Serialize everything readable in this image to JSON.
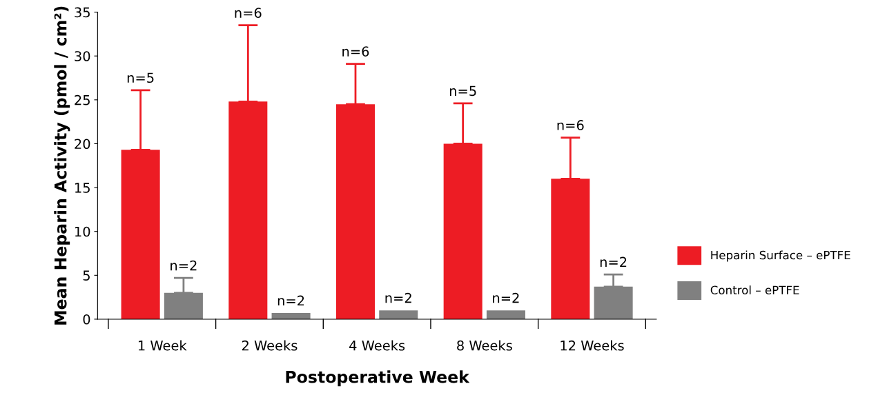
{
  "chart_data": {
    "type": "bar",
    "xlabel": "Postoperative Week",
    "ylabel": "Mean Heparin Activity (pmol / cm²)",
    "categories": [
      "1 Week",
      "2 Weeks",
      "4 Weeks",
      "8 Weeks",
      "12 Weeks"
    ],
    "series": [
      {
        "name": "Heparin Surface – ePTFE",
        "color": "#ed1c24",
        "values": [
          19.3,
          24.8,
          24.5,
          20.0,
          16.0
        ],
        "errors": [
          [
            19.3,
            26.1
          ],
          [
            24.8,
            33.5
          ],
          [
            24.5,
            29.1
          ],
          [
            20.0,
            24.6
          ],
          [
            16.0,
            20.7
          ]
        ]
      },
      {
        "name": "Control – ePTFE",
        "color": "#808080",
        "values": [
          3.0,
          0.7,
          1.0,
          1.0,
          3.7
        ],
        "errors": [
          [
            3.0,
            4.7
          ],
          null,
          null,
          null,
          [
            3.7,
            5.1
          ]
        ]
      }
    ],
    "annotations": [
      "n=5",
      "n=6",
      "n=6",
      "n=5",
      "n=6",
      "n=2",
      "n=2",
      "n=2",
      "n=2",
      "n=2"
    ],
    "ylim": [
      0,
      35
    ],
    "yticks": [
      0,
      5,
      10,
      15,
      20,
      25,
      30,
      35
    ],
    "grid": false,
    "legend": "right"
  }
}
